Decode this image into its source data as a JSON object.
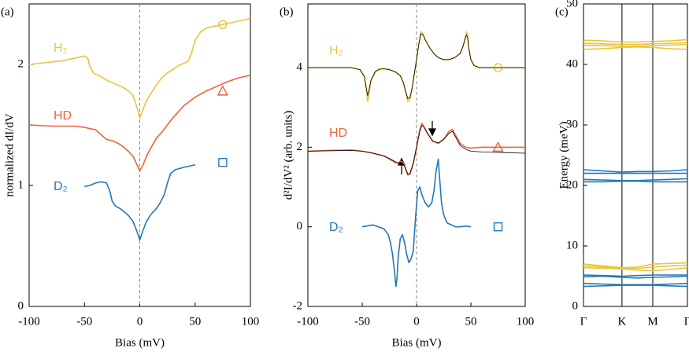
{
  "chart_data": [
    {
      "type": "line",
      "panel_label": "(a)",
      "xlabel": "Bias (mV)",
      "ylabel": "normalized dI/dV",
      "xlim": [
        -100,
        100
      ],
      "ylim": [
        0,
        2.5
      ],
      "xticks": [
        -100,
        -50,
        0,
        50,
        100
      ],
      "yticks": [
        0,
        1,
        2
      ],
      "vline": 0,
      "series": [
        {
          "name": "H₂",
          "color": "#e9c53b",
          "x": [
            -100,
            -90,
            -80,
            -70,
            -60,
            -55,
            -50,
            -47,
            -45,
            -42,
            -40,
            -35,
            -30,
            -25,
            -20,
            -15,
            -10,
            -6,
            -3,
            0,
            3,
            6,
            10,
            15,
            20,
            25,
            30,
            35,
            40,
            44,
            47,
            50,
            55,
            60,
            70,
            80,
            90,
            100
          ],
          "values": [
            2.0,
            2.01,
            2.02,
            2.03,
            2.05,
            2.06,
            2.07,
            2.05,
            1.98,
            1.93,
            1.92,
            1.9,
            1.87,
            1.85,
            1.83,
            1.81,
            1.78,
            1.74,
            1.66,
            1.56,
            1.63,
            1.7,
            1.76,
            1.83,
            1.89,
            1.93,
            1.96,
            1.99,
            2.01,
            2.03,
            2.1,
            2.2,
            2.27,
            2.3,
            2.32,
            2.34,
            2.36,
            2.38
          ],
          "marker": {
            "shape": "circle",
            "x": 75,
            "y": 2.33
          }
        },
        {
          "name": "HD",
          "color": "#e8643a",
          "x": [
            -100,
            -80,
            -60,
            -50,
            -40,
            -35,
            -30,
            -25,
            -20,
            -15,
            -10,
            -6,
            -3,
            0,
            3,
            6,
            10,
            15,
            20,
            25,
            30,
            40,
            50,
            60,
            70,
            80,
            90,
            100
          ],
          "values": [
            1.5,
            1.49,
            1.49,
            1.48,
            1.46,
            1.42,
            1.38,
            1.37,
            1.35,
            1.32,
            1.28,
            1.24,
            1.18,
            1.12,
            1.17,
            1.24,
            1.31,
            1.39,
            1.44,
            1.5,
            1.56,
            1.66,
            1.73,
            1.78,
            1.82,
            1.86,
            1.89,
            1.91
          ],
          "marker": {
            "shape": "triangle",
            "x": 75,
            "y": 1.78
          }
        },
        {
          "name": "D₂",
          "color": "#2277b8",
          "x": [
            -50,
            -45,
            -40,
            -35,
            -30,
            -27,
            -25,
            -22,
            -18,
            -15,
            -10,
            -6,
            -3,
            0,
            3,
            6,
            10,
            15,
            18,
            22,
            25,
            28,
            32,
            40,
            45,
            50
          ],
          "values": [
            0.99,
            1.0,
            1.02,
            1.03,
            1.02,
            0.95,
            0.87,
            0.83,
            0.81,
            0.79,
            0.75,
            0.7,
            0.63,
            0.55,
            0.63,
            0.7,
            0.76,
            0.81,
            0.85,
            0.92,
            1.02,
            1.1,
            1.13,
            1.15,
            1.16,
            1.17
          ],
          "marker": {
            "shape": "square",
            "x": 75,
            "y": 1.19
          }
        }
      ]
    },
    {
      "type": "line",
      "panel_label": "(b)",
      "xlabel": "Bias (mV)",
      "ylabel": "d²I/dV² (arb. units)",
      "xlim": [
        -100,
        100
      ],
      "ylim": [
        -2,
        5.6
      ],
      "xticks": [
        -100,
        -50,
        0,
        50,
        100
      ],
      "yticks": [
        -2,
        0,
        2,
        4
      ],
      "vline": 0,
      "series": [
        {
          "name": "H₂",
          "color": "#e9c53b",
          "x": [
            -100,
            -80,
            -60,
            -52,
            -48,
            -46,
            -45,
            -44,
            -42,
            -38,
            -34,
            -30,
            -25,
            -20,
            -15,
            -12,
            -10,
            -8,
            -6,
            -4,
            -2,
            0,
            2,
            4,
            6,
            8,
            12,
            16,
            20,
            25,
            30,
            35,
            40,
            43,
            45,
            46,
            47,
            48,
            50,
            53,
            58,
            65,
            75,
            85,
            100
          ],
          "values": [
            4.0,
            4.0,
            4.0,
            3.95,
            3.75,
            3.4,
            3.15,
            3.3,
            3.65,
            3.9,
            3.97,
            3.98,
            3.95,
            3.9,
            3.8,
            3.6,
            3.35,
            3.15,
            3.2,
            3.5,
            3.85,
            4.2,
            4.6,
            4.9,
            4.85,
            4.7,
            4.5,
            4.35,
            4.25,
            4.2,
            4.2,
            4.25,
            4.35,
            4.55,
            4.8,
            4.9,
            4.8,
            4.5,
            4.2,
            4.05,
            4.0,
            4.0,
            4.0,
            4.0,
            4.0
          ],
          "marker": {
            "shape": "circle",
            "x": 75,
            "y": 4.0
          }
        },
        {
          "color": "#000000",
          "x": [
            -100,
            -80,
            -60,
            -52,
            -48,
            -46,
            -45,
            -44,
            -42,
            -38,
            -34,
            -30,
            -25,
            -20,
            -15,
            -12,
            -10,
            -8,
            -6,
            -4,
            -2,
            0,
            2,
            4,
            6,
            8,
            12,
            16,
            20,
            25,
            30,
            35,
            40,
            43,
            45,
            46,
            47,
            48,
            50,
            53,
            58,
            65,
            75,
            85,
            100
          ],
          "values": [
            4.0,
            4.0,
            4.0,
            3.95,
            3.78,
            3.45,
            3.3,
            3.4,
            3.68,
            3.9,
            3.96,
            3.97,
            3.95,
            3.9,
            3.8,
            3.62,
            3.4,
            3.22,
            3.25,
            3.5,
            3.85,
            4.2,
            4.58,
            4.85,
            4.82,
            4.7,
            4.5,
            4.35,
            4.25,
            4.2,
            4.2,
            4.25,
            4.35,
            4.55,
            4.75,
            4.82,
            4.75,
            4.5,
            4.2,
            4.05,
            4.0,
            4.0,
            4.0,
            4.0,
            4.0
          ]
        },
        {
          "name": "HD",
          "color": "#e8643a",
          "x": [
            -100,
            -80,
            -60,
            -50,
            -40,
            -30,
            -25,
            -20,
            -17,
            -15,
            -12,
            -10,
            -8,
            -6,
            -3,
            0,
            3,
            5,
            7,
            10,
            15,
            20,
            25,
            30,
            33,
            36,
            40,
            45,
            50,
            60,
            75,
            100
          ],
          "values": [
            1.9,
            1.92,
            1.93,
            1.9,
            1.85,
            1.78,
            1.7,
            1.62,
            1.6,
            1.65,
            1.62,
            1.45,
            1.3,
            1.32,
            1.6,
            2.0,
            2.45,
            2.6,
            2.5,
            2.35,
            2.15,
            2.1,
            2.2,
            2.4,
            2.45,
            2.3,
            2.1,
            2.0,
            1.98,
            2.0,
            2.0,
            2.0
          ],
          "marker": {
            "shape": "triangle",
            "x": 75,
            "y": 2.0
          }
        },
        {
          "color": "#000000",
          "x": [
            -100,
            -80,
            -60,
            -50,
            -40,
            -30,
            -25,
            -20,
            -17,
            -15,
            -12,
            -10,
            -8,
            -6,
            -3,
            0,
            3,
            5,
            7,
            10,
            15,
            20,
            25,
            30,
            33,
            36,
            40,
            45,
            50,
            60,
            75,
            100
          ],
          "values": [
            1.9,
            1.91,
            1.92,
            1.9,
            1.85,
            1.78,
            1.72,
            1.64,
            1.6,
            1.62,
            1.58,
            1.45,
            1.32,
            1.35,
            1.6,
            2.0,
            2.4,
            2.55,
            2.5,
            2.35,
            2.15,
            2.1,
            2.2,
            2.35,
            2.4,
            2.25,
            2.05,
            1.95,
            1.9,
            1.88,
            1.87,
            1.85
          ]
        },
        {
          "name": "D₂",
          "color": "#2277b8",
          "x": [
            -50,
            -40,
            -30,
            -26,
            -24,
            -22,
            -20,
            -19,
            -18,
            -17,
            -15,
            -13,
            -11,
            -9,
            -7,
            -5,
            -3,
            -1,
            1,
            3,
            5,
            8,
            11,
            14,
            16,
            18,
            20,
            21,
            23,
            25,
            28,
            32,
            36,
            40,
            45,
            50
          ],
          "values": [
            0,
            0.05,
            -0.05,
            -0.2,
            -0.4,
            -0.7,
            -1.2,
            -1.5,
            -1.3,
            -0.8,
            -0.3,
            -0.2,
            -0.4,
            -0.7,
            -0.9,
            -0.8,
            -0.6,
            0.2,
            0.9,
            1.0,
            0.8,
            0.6,
            0.5,
            0.6,
            0.9,
            1.4,
            1.7,
            1.3,
            0.6,
            0.3,
            0.1,
            0.05,
            0,
            0,
            0.02,
            0
          ],
          "marker": {
            "shape": "square",
            "x": 75,
            "y": 0
          }
        }
      ]
    },
    {
      "type": "line",
      "panel_label": "(c)",
      "ylabel": "Energy (meV)",
      "xlim": [
        0,
        2.7
      ],
      "ylim": [
        0,
        50
      ],
      "yticks": [
        0,
        10,
        20,
        30,
        40,
        50
      ],
      "grid": true,
      "xticks": [
        {
          "value": 0,
          "label": "Γ"
        },
        {
          "value": 1,
          "label": "K"
        },
        {
          "value": 1.8,
          "label": "M"
        },
        {
          "value": 2.7,
          "label": "Γ"
        }
      ],
      "x": [
        0,
        0.5,
        1,
        1.4,
        1.8,
        2.25,
        2.7
      ],
      "series": [
        {
          "color": "#e9c53b",
          "values": [
            44.0,
            43.9,
            43.7,
            43.7,
            43.8,
            43.9,
            44.1
          ]
        },
        {
          "color": "#e9c53b",
          "values": [
            43.5,
            43.4,
            43.3,
            43.3,
            43.4,
            43.5,
            43.6
          ]
        },
        {
          "color": "#e9c53b",
          "values": [
            43.2,
            43.1,
            43.0,
            43.0,
            43.1,
            43.2,
            43.3
          ]
        },
        {
          "color": "#e9c53b",
          "values": [
            42.5,
            42.6,
            42.8,
            42.9,
            42.8,
            42.6,
            42.5
          ]
        },
        {
          "color": "#2277b8",
          "values": [
            22.6,
            22.4,
            22.2,
            22.3,
            22.3,
            22.4,
            22.6
          ]
        },
        {
          "color": "#2277b8",
          "values": [
            22.0,
            22.0,
            22.0,
            22.0,
            22.0,
            22.0,
            22.0
          ]
        },
        {
          "color": "#2277b8",
          "values": [
            21.0,
            20.9,
            20.8,
            20.8,
            20.9,
            21.0,
            21.1
          ]
        },
        {
          "color": "#2277b8",
          "values": [
            20.6,
            20.6,
            20.7,
            20.7,
            20.6,
            20.6,
            20.6
          ]
        },
        {
          "color": "#e9c53b",
          "values": [
            7.0,
            6.7,
            6.4,
            6.5,
            7.0,
            7.1,
            7.2
          ]
        },
        {
          "color": "#e9c53b",
          "values": [
            6.7,
            6.5,
            6.3,
            6.3,
            6.5,
            6.7,
            6.8
          ]
        },
        {
          "color": "#e9c53b",
          "values": [
            6.4,
            6.3,
            6.2,
            6.0,
            5.9,
            6.1,
            6.4
          ]
        },
        {
          "color": "#2277b8",
          "values": [
            5.2,
            5.1,
            5.0,
            5.1,
            5.2,
            5.2,
            5.2
          ]
        },
        {
          "color": "#2277b8",
          "values": [
            4.9,
            5.0,
            4.8,
            4.7,
            4.8,
            4.9,
            5.0
          ]
        },
        {
          "color": "#2277b8",
          "values": [
            3.8,
            3.7,
            3.6,
            3.6,
            3.6,
            3.7,
            3.8
          ]
        },
        {
          "color": "#2277b8",
          "values": [
            3.3,
            3.4,
            3.5,
            3.5,
            3.5,
            3.4,
            3.3
          ]
        }
      ]
    }
  ]
}
